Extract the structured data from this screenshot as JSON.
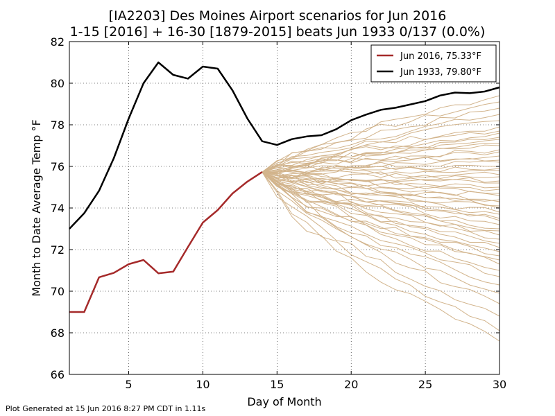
{
  "chart_data": {
    "type": "line",
    "title": "[IA2203] Des Moines Airport scenarios for Jun 2016",
    "subtitle": "1-15 [2016] + 16-30 [1879-2015] beats Jun 1933 0/137 (0.0%)",
    "xlabel": "Day of Month",
    "ylabel": "Month to Date Average Temp °F",
    "xlim": [
      1,
      30
    ],
    "ylim": [
      66,
      82
    ],
    "xticks": [
      5,
      10,
      15,
      20,
      25,
      30
    ],
    "yticks": [
      66,
      68,
      70,
      72,
      74,
      76,
      78,
      80,
      82
    ],
    "grid": true,
    "legend_position": "top-right",
    "scenario_color": "#d2b48c",
    "scenario_start": {
      "x": 14,
      "y": 75.73
    },
    "scenario_end_values": [
      79.4,
      79.1,
      78.8,
      78.5,
      78.2,
      77.9,
      77.7,
      77.6,
      77.4,
      77.3,
      77.1,
      77.0,
      76.8,
      76.7,
      76.5,
      76.3,
      76.2,
      76.0,
      75.9,
      75.8,
      75.6,
      75.5,
      75.3,
      75.2,
      75.0,
      74.9,
      74.7,
      74.6,
      74.4,
      74.3,
      74.1,
      74.0,
      73.8,
      73.7,
      73.5,
      73.4,
      73.2,
      73.0,
      72.9,
      72.7,
      72.5,
      72.3,
      72.1,
      71.9,
      71.7,
      71.5,
      71.3,
      71.0,
      70.7,
      70.3,
      69.9,
      69.4,
      68.8,
      68.1,
      67.6
    ],
    "series": [
      {
        "name": "Jun 2016, 75.33°F",
        "color": "#a52a2a",
        "x": [
          1,
          2,
          3,
          4,
          5,
          6,
          7,
          8,
          9,
          10,
          11,
          12,
          13,
          14
        ],
        "values": [
          69.0,
          69.0,
          70.67,
          70.88,
          71.3,
          71.5,
          70.86,
          70.94,
          72.13,
          73.3,
          73.9,
          74.7,
          75.27,
          75.73
        ]
      },
      {
        "name": "Jun 1933, 79.80°F",
        "color": "#000000",
        "x": [
          1,
          2,
          3,
          4,
          5,
          6,
          7,
          8,
          9,
          10,
          11,
          12,
          13,
          14,
          15,
          16,
          17,
          18,
          19,
          20,
          21,
          22,
          23,
          24,
          25,
          26,
          27,
          28,
          29,
          30
        ],
        "values": [
          73.0,
          73.75,
          74.83,
          76.4,
          78.3,
          80.0,
          81.0,
          80.4,
          80.22,
          80.8,
          80.7,
          79.65,
          78.3,
          77.21,
          77.03,
          77.31,
          77.44,
          77.5,
          77.79,
          78.22,
          78.49,
          78.72,
          78.82,
          78.98,
          79.14,
          79.41,
          79.55,
          79.52,
          79.6,
          79.8
        ]
      }
    ]
  },
  "footer": "Plot Generated at 15 Jun 2016 8:27 PM CDT in 1.11s"
}
